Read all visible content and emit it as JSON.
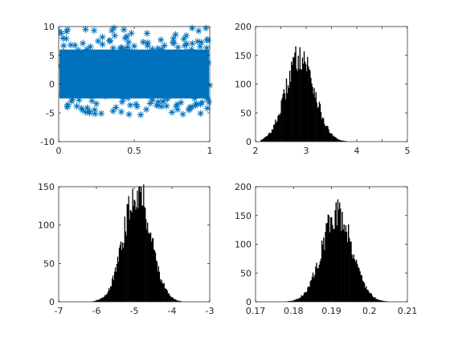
{
  "figure": {
    "background": "#ffffff",
    "axis_color": "#262626"
  },
  "chart_data": [
    {
      "type": "scatter",
      "marker": "asterisk",
      "color": "#0072bd",
      "xlim": [
        0,
        1
      ],
      "ylim": [
        -10,
        10
      ],
      "xticks": [
        0,
        0.5,
        1
      ],
      "xtick_labels": [
        "0",
        "0.5",
        "1"
      ],
      "yticks": [
        -10,
        -5,
        0,
        5,
        10
      ],
      "ytick_labels": [
        "-10",
        "-5",
        "0",
        "5",
        "10"
      ],
      "points": [
        [
          0.01,
          3.2
        ],
        [
          0.02,
          -1.8
        ],
        [
          0.03,
          5.6
        ],
        [
          0.04,
          0.4
        ],
        [
          0.05,
          7.9
        ],
        [
          0.06,
          -3.6
        ],
        [
          0.07,
          2.1
        ],
        [
          0.08,
          6.8
        ],
        [
          0.09,
          -2.7
        ],
        [
          0.1,
          4.4
        ],
        [
          0.11,
          1.0
        ],
        [
          0.12,
          -0.6
        ],
        [
          0.13,
          5.9
        ],
        [
          0.14,
          3.0
        ],
        [
          0.15,
          -4.2
        ],
        [
          0.16,
          7.1
        ],
        [
          0.17,
          2.6
        ],
        [
          0.18,
          -1.2
        ],
        [
          0.19,
          4.8
        ],
        [
          0.2,
          0.9
        ],
        [
          0.21,
          6.5
        ],
        [
          0.22,
          -2.9
        ],
        [
          0.23,
          3.6
        ],
        [
          0.24,
          1.5
        ],
        [
          0.25,
          -3.4
        ],
        [
          0.26,
          5.2
        ],
        [
          0.27,
          2.3
        ],
        [
          0.28,
          -0.3
        ],
        [
          0.29,
          6.9
        ],
        [
          0.3,
          3.9
        ],
        [
          0.31,
          -2.1
        ],
        [
          0.32,
          4.1
        ],
        [
          0.33,
          0.2
        ],
        [
          0.34,
          7.6
        ],
        [
          0.35,
          2.8
        ],
        [
          0.36,
          -4.7
        ],
        [
          0.37,
          5.4
        ],
        [
          0.38,
          1.7
        ],
        [
          0.39,
          -1.5
        ],
        [
          0.4,
          3.3
        ],
        [
          0.41,
          6.2
        ],
        [
          0.42,
          -3.1
        ],
        [
          0.43,
          2.0
        ],
        [
          0.44,
          4.6
        ],
        [
          0.45,
          0.6
        ],
        [
          0.46,
          -2.4
        ],
        [
          0.47,
          5.8
        ],
        [
          0.48,
          3.5
        ],
        [
          0.49,
          -0.9
        ],
        [
          0.5,
          6.6
        ],
        [
          0.51,
          1.3
        ],
        [
          0.52,
          -3.9
        ],
        [
          0.53,
          4.9
        ],
        [
          0.54,
          2.5
        ],
        [
          0.55,
          -1.1
        ],
        [
          0.56,
          7.3
        ],
        [
          0.57,
          3.1
        ],
        [
          0.58,
          -4.4
        ],
        [
          0.59,
          5.0
        ],
        [
          0.6,
          0.8
        ],
        [
          0.61,
          -2.2
        ],
        [
          0.62,
          6.1
        ],
        [
          0.63,
          2.9
        ],
        [
          0.64,
          -0.4
        ],
        [
          0.65,
          4.3
        ],
        [
          0.66,
          -3.7
        ],
        [
          0.67,
          5.5
        ],
        [
          0.68,
          1.9
        ],
        [
          0.69,
          -1.6
        ],
        [
          0.7,
          6.7
        ],
        [
          0.71,
          3.4
        ],
        [
          0.72,
          -2.6
        ],
        [
          0.73,
          4.7
        ],
        [
          0.74,
          0.3
        ],
        [
          0.75,
          -4.9
        ],
        [
          0.76,
          5.3
        ],
        [
          0.77,
          2.2
        ],
        [
          0.78,
          -0.7
        ],
        [
          0.79,
          6.4
        ],
        [
          0.8,
          3.8
        ],
        [
          0.81,
          -3.2
        ],
        [
          0.82,
          4.5
        ],
        [
          0.83,
          1.1
        ],
        [
          0.84,
          -1.9
        ],
        [
          0.85,
          5.7
        ],
        [
          0.86,
          2.7
        ],
        [
          0.87,
          -4.0
        ],
        [
          0.88,
          6.0
        ],
        [
          0.89,
          0.5
        ],
        [
          0.9,
          -2.5
        ],
        [
          0.91,
          4.0
        ],
        [
          0.92,
          7.4
        ],
        [
          0.93,
          1.6
        ],
        [
          0.94,
          -3.5
        ],
        [
          0.95,
          5.1
        ],
        [
          0.96,
          2.4
        ],
        [
          0.97,
          -1.3
        ],
        [
          0.98,
          6.3
        ],
        [
          0.99,
          3.7
        ],
        [
          1.0,
          -0.2
        ]
      ],
      "band": {
        "y_low": -2.5,
        "y_high": 6.0
      }
    },
    {
      "type": "bar",
      "subtype": "histogram",
      "color": "#000000",
      "xlim": [
        2,
        5
      ],
      "ylim": [
        0,
        200
      ],
      "xticks": [
        2,
        2.5,
        3,
        3.5,
        4,
        4.5,
        5
      ],
      "xtick_labels": [
        "2",
        "",
        "3",
        "",
        "4",
        "",
        "5"
      ],
      "yticks": [
        0,
        50,
        100,
        150,
        200
      ],
      "ytick_labels": [
        "0",
        "50",
        "100",
        "150",
        "200"
      ],
      "histogram": {
        "center": 2.88,
        "spread": 0.28,
        "peak": 150,
        "range": [
          2.1,
          4.1
        ],
        "bins": 120
      }
    },
    {
      "type": "bar",
      "subtype": "histogram",
      "color": "#000000",
      "xlim": [
        -7,
        -3
      ],
      "ylim": [
        0,
        150
      ],
      "xticks": [
        -7,
        -6,
        -5,
        -4,
        -3
      ],
      "xtick_labels": [
        "-7",
        "-6",
        "-5",
        "-4",
        "-3"
      ],
      "yticks": [
        0,
        50,
        100,
        150
      ],
      "ytick_labels": [
        "0",
        "50",
        "100",
        "150"
      ],
      "histogram": {
        "center": -4.92,
        "spread": 0.36,
        "peak": 145,
        "range": [
          -6.2,
          -3.7
        ],
        "bins": 120
      }
    },
    {
      "type": "bar",
      "subtype": "histogram",
      "color": "#000000",
      "xlim": [
        0.17,
        0.21
      ],
      "ylim": [
        0,
        200
      ],
      "xticks": [
        0.17,
        0.18,
        0.19,
        0.2,
        0.21
      ],
      "xtick_labels": [
        "0.17",
        "0.18",
        "0.19",
        "0.2",
        "0.21"
      ],
      "yticks": [
        0,
        50,
        100,
        150,
        200
      ],
      "ytick_labels": [
        "0",
        "50",
        "100",
        "150",
        "200"
      ],
      "histogram": {
        "center": 0.1915,
        "spread": 0.004,
        "peak": 155,
        "range": [
          0.178,
          0.206
        ],
        "bins": 120
      }
    }
  ]
}
